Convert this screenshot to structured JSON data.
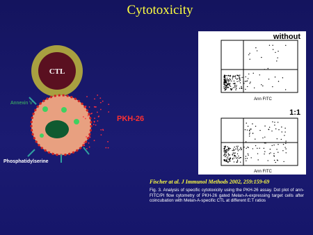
{
  "title": "Cytotoxicity",
  "diagram": {
    "ctl_label": "CTL",
    "annexin_label": "Annexin V",
    "pkh_label": "PKH-26",
    "ps_label": "Phosphatidylserine"
  },
  "figure": {
    "panels": [
      {
        "label": "without",
        "x_axis": "Ann FITC"
      },
      {
        "label": "1:1",
        "x_axis": "Ann FITC"
      }
    ]
  },
  "reference": {
    "citation": "Fischer at al. J Immunol Methods 2002, 259:159-69",
    "caption": "Fig. 3. Analysis of specific cytotoxicity using the PKH-26 assay. Dot plot of ann-FITC/PI flow cytometry of PKH-26 gated Melan-A-expressing target cells after coincubation with Melan-A-specific CTL at different E:T ratios"
  }
}
